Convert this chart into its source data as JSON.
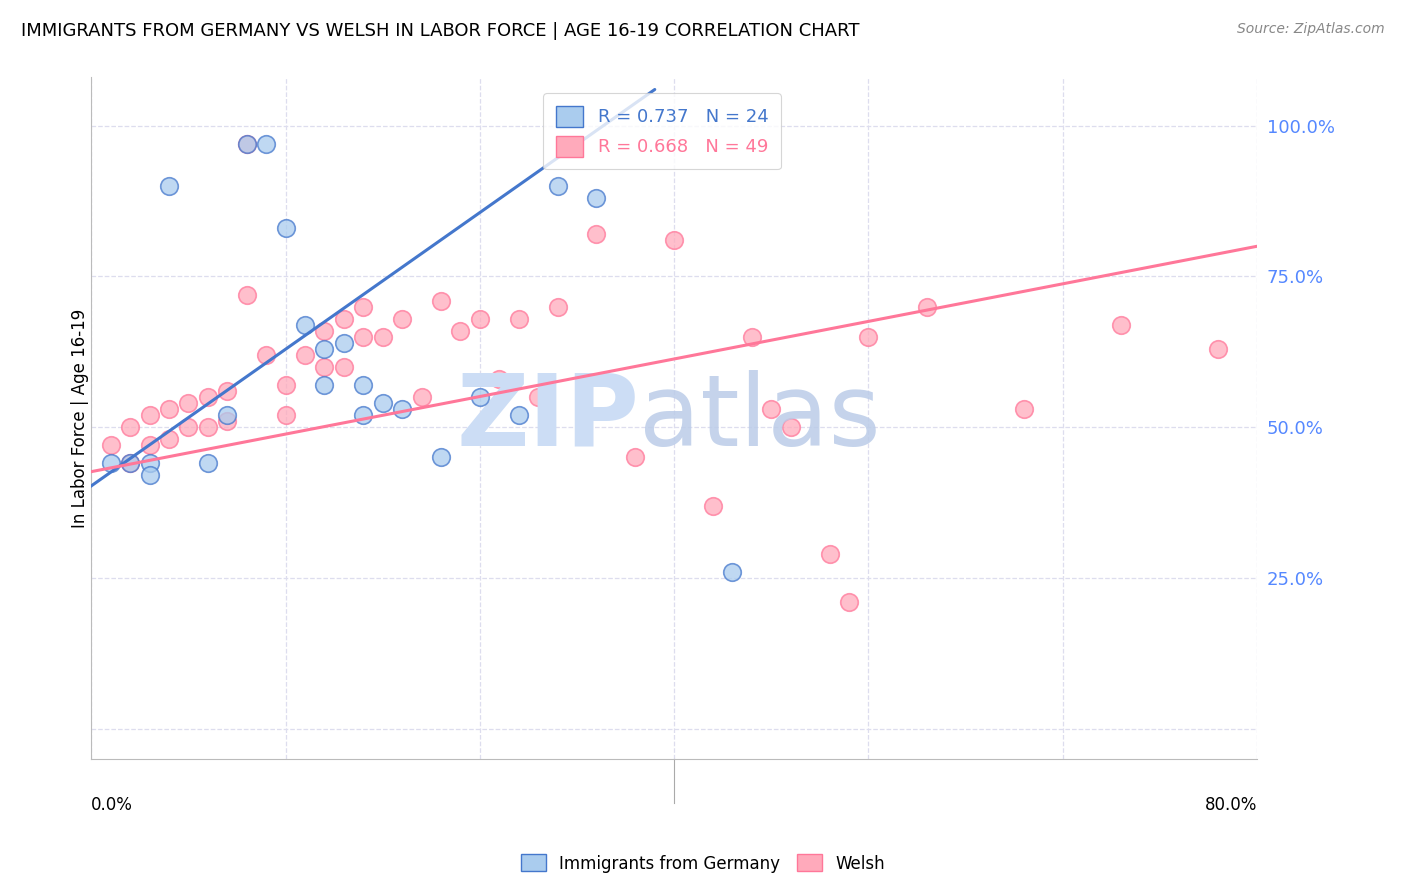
{
  "title": "IMMIGRANTS FROM GERMANY VS WELSH IN LABOR FORCE | AGE 16-19 CORRELATION CHART",
  "source": "Source: ZipAtlas.com",
  "ylabel": "In Labor Force | Age 16-19",
  "ytick_labels": [
    "",
    "25.0%",
    "50.0%",
    "75.0%",
    "100.0%"
  ],
  "ytick_positions": [
    0.0,
    0.25,
    0.5,
    0.75,
    1.0
  ],
  "xlim": [
    0.0,
    0.3
  ],
  "ylim": [
    -0.05,
    1.08
  ],
  "blue_color": "#AACCEE",
  "pink_color": "#FFAABB",
  "blue_line_color": "#4477CC",
  "pink_line_color": "#FF7799",
  "blue_scatter_x": [
    0.005,
    0.01,
    0.015,
    0.015,
    0.02,
    0.03,
    0.035,
    0.04,
    0.045,
    0.05,
    0.055,
    0.06,
    0.06,
    0.065,
    0.07,
    0.07,
    0.075,
    0.08,
    0.09,
    0.1,
    0.11,
    0.12,
    0.13,
    0.165
  ],
  "blue_scatter_y": [
    0.44,
    0.44,
    0.44,
    0.42,
    0.9,
    0.44,
    0.52,
    0.97,
    0.97,
    0.83,
    0.67,
    0.63,
    0.57,
    0.64,
    0.57,
    0.52,
    0.54,
    0.53,
    0.45,
    0.55,
    0.52,
    0.9,
    0.88,
    0.26
  ],
  "pink_scatter_x": [
    0.005,
    0.01,
    0.01,
    0.015,
    0.015,
    0.02,
    0.02,
    0.025,
    0.025,
    0.03,
    0.03,
    0.035,
    0.035,
    0.04,
    0.04,
    0.045,
    0.05,
    0.05,
    0.055,
    0.06,
    0.06,
    0.065,
    0.065,
    0.07,
    0.07,
    0.075,
    0.08,
    0.085,
    0.09,
    0.095,
    0.1,
    0.105,
    0.11,
    0.115,
    0.12,
    0.13,
    0.14,
    0.15,
    0.16,
    0.17,
    0.175,
    0.18,
    0.19,
    0.195,
    0.2,
    0.215,
    0.24,
    0.265,
    0.29
  ],
  "pink_scatter_y": [
    0.47,
    0.5,
    0.44,
    0.52,
    0.47,
    0.53,
    0.48,
    0.54,
    0.5,
    0.55,
    0.5,
    0.56,
    0.51,
    0.72,
    0.97,
    0.62,
    0.57,
    0.52,
    0.62,
    0.66,
    0.6,
    0.68,
    0.6,
    0.7,
    0.65,
    0.65,
    0.68,
    0.55,
    0.71,
    0.66,
    0.68,
    0.58,
    0.68,
    0.55,
    0.7,
    0.82,
    0.45,
    0.81,
    0.37,
    0.65,
    0.53,
    0.5,
    0.29,
    0.21,
    0.65,
    0.7,
    0.53,
    0.67,
    0.63
  ],
  "blue_trend_x": [
    -0.005,
    0.145
  ],
  "blue_trend_y": [
    0.38,
    1.06
  ],
  "pink_trend_x": [
    -0.005,
    0.3
  ],
  "pink_trend_y": [
    0.42,
    0.8
  ]
}
